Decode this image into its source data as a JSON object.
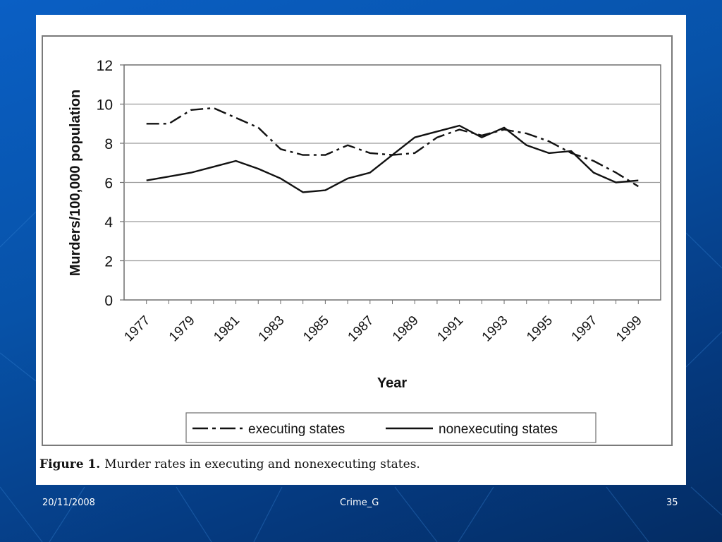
{
  "footer": {
    "date": "20/11/2008",
    "title": "Crime_G",
    "page": "35"
  },
  "caption": {
    "label": "Figure 1.",
    "text": "Murder rates in executing and nonexecuting states."
  },
  "chart_data": {
    "type": "line",
    "xlabel": "Year",
    "ylabel": "Murders/100,000 population",
    "ylim": [
      0,
      12
    ],
    "yticks": [
      "0",
      "2",
      "4",
      "6",
      "8",
      "10",
      "12"
    ],
    "xlim": [
      1976,
      2000
    ],
    "xtick_labels": [
      "1977",
      "1979",
      "1981",
      "1983",
      "1985",
      "1987",
      "1989",
      "1991",
      "1993",
      "1995",
      "1997",
      "1999"
    ],
    "grid": "horizontal",
    "legend_position": "bottom",
    "x": [
      1977,
      1978,
      1979,
      1980,
      1981,
      1982,
      1983,
      1984,
      1985,
      1986,
      1987,
      1988,
      1989,
      1990,
      1991,
      1992,
      1993,
      1994,
      1995,
      1996,
      1997,
      1998,
      1999
    ],
    "series": [
      {
        "name": "executing states",
        "style": "dash-dot",
        "values": [
          9.0,
          9.0,
          9.7,
          9.8,
          9.3,
          8.8,
          7.7,
          7.4,
          7.4,
          7.9,
          7.5,
          7.4,
          7.5,
          8.3,
          8.7,
          8.4,
          8.7,
          8.5,
          8.1,
          7.5,
          7.1,
          6.5,
          5.8
        ]
      },
      {
        "name": "nonexecuting states",
        "style": "solid",
        "values": [
          6.1,
          6.3,
          6.5,
          6.8,
          7.1,
          6.7,
          6.2,
          5.5,
          5.6,
          6.2,
          6.5,
          7.4,
          8.3,
          8.6,
          8.9,
          8.3,
          8.8,
          7.9,
          7.5,
          7.6,
          6.5,
          6.0,
          6.1
        ]
      }
    ],
    "colors": {
      "line": "#111111",
      "grid": "#9a9a9a",
      "frame": "#6e6e6e"
    }
  }
}
